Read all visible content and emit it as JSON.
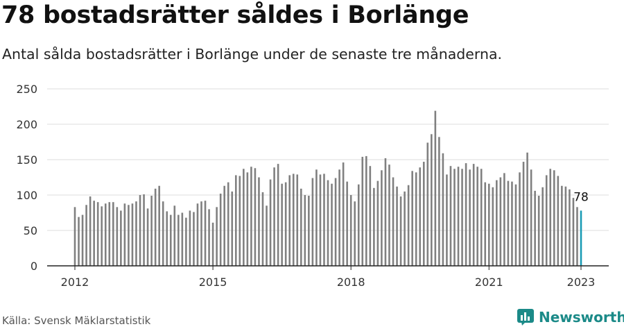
{
  "title": "78 bostadsrätter såldes i Borlänge",
  "subtitle": "Antal sålda bostadsrätter i Borlänge under de senaste tre månaderna.",
  "source": "Källa: Svensk Mäklarstatistik",
  "brand": "Newsworthy",
  "colors": {
    "bar": "#808080",
    "highlight": "#1a9bb5",
    "brand": "#1b8a88",
    "grid": "#dddddd",
    "axis": "#222222"
  },
  "chart_data": {
    "type": "bar",
    "title": "78 bostadsrätter såldes i Borlänge",
    "subtitle": "Antal sålda bostadsrätter i Borlänge under de senaste tre månaderna.",
    "xlabel": "",
    "ylabel": "",
    "ylim": [
      0,
      250
    ],
    "yticks": [
      0,
      50,
      100,
      150,
      200,
      250
    ],
    "xticks": [
      "2012",
      "2015",
      "2018",
      "2021",
      "2023"
    ],
    "grid": true,
    "x_start": "2012-01",
    "x_end": "2023-01",
    "highlight_label": "78",
    "values": [
      83,
      69,
      72,
      86,
      98,
      92,
      90,
      84,
      88,
      90,
      90,
      83,
      78,
      88,
      86,
      88,
      91,
      100,
      101,
      81,
      99,
      109,
      113,
      91,
      77,
      72,
      85,
      72,
      75,
      68,
      78,
      76,
      88,
      91,
      92,
      80,
      61,
      83,
      102,
      113,
      118,
      105,
      128,
      127,
      137,
      132,
      140,
      138,
      125,
      104,
      85,
      122,
      139,
      144,
      116,
      118,
      128,
      130,
      129,
      109,
      100,
      99,
      124,
      136,
      129,
      130,
      121,
      116,
      124,
      136,
      146,
      119,
      100,
      91,
      115,
      154,
      155,
      141,
      110,
      120,
      135,
      152,
      143,
      125,
      112,
      98,
      105,
      114,
      134,
      132,
      139,
      147,
      174,
      186,
      219,
      182,
      159,
      129,
      141,
      137,
      140,
      137,
      145,
      136,
      144,
      140,
      137,
      118,
      116,
      111,
      121,
      125,
      131,
      120,
      119,
      115,
      132,
      147,
      160,
      136,
      106,
      99,
      111,
      128,
      137,
      135,
      127,
      113,
      112,
      108,
      96,
      83,
      78
    ]
  }
}
